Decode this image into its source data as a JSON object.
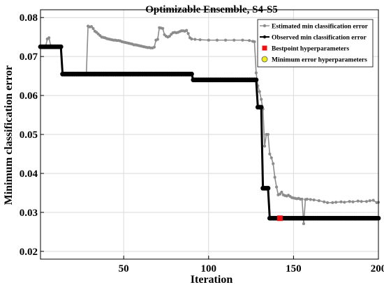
{
  "chart_data": {
    "type": "line",
    "title": "Optimizable Ensemble, S4-S5",
    "xlabel": "Iteration",
    "ylabel": "Minimum classification error",
    "xlim": [
      1,
      200
    ],
    "ylim": [
      0.018,
      0.082
    ],
    "xticks": [
      "50",
      "100",
      "150",
      "200"
    ],
    "yticks": [
      "0.02",
      "0.03",
      "0.04",
      "0.05",
      "0.06",
      "0.07",
      "0.08"
    ],
    "grid": true,
    "legend_position": "top-right",
    "series": [
      {
        "name": "Estimated min classification error",
        "color": "#8c8c8c",
        "marker": "dot",
        "points": [
          [
            1,
            0.0725
          ],
          [
            2,
            0.0725
          ],
          [
            3,
            0.0725
          ],
          [
            4,
            0.0725
          ],
          [
            5,
            0.0745
          ],
          [
            6,
            0.0748
          ],
          [
            7,
            0.0728
          ],
          [
            8,
            0.0725
          ],
          [
            9,
            0.0725
          ],
          [
            10,
            0.0725
          ],
          [
            11,
            0.0725
          ],
          [
            12,
            0.0725
          ],
          [
            13,
            0.0725
          ],
          [
            14,
            0.0655
          ],
          [
            16,
            0.0655
          ],
          [
            18,
            0.0655
          ],
          [
            20,
            0.0655
          ],
          [
            22,
            0.0655
          ],
          [
            24,
            0.0655
          ],
          [
            26,
            0.0655
          ],
          [
            28,
            0.0655
          ],
          [
            29,
            0.0778
          ],
          [
            30,
            0.0776
          ],
          [
            31,
            0.0777
          ],
          [
            32,
            0.0772
          ],
          [
            33,
            0.0765
          ],
          [
            34,
            0.0762
          ],
          [
            35,
            0.0758
          ],
          [
            36,
            0.0754
          ],
          [
            37,
            0.075
          ],
          [
            38,
            0.0749
          ],
          [
            39,
            0.0748
          ],
          [
            40,
            0.0746
          ],
          [
            41,
            0.0745
          ],
          [
            42,
            0.0744
          ],
          [
            43,
            0.0743
          ],
          [
            44,
            0.0742
          ],
          [
            45,
            0.0742
          ],
          [
            46,
            0.0741
          ],
          [
            47,
            0.0741
          ],
          [
            48,
            0.074
          ],
          [
            49,
            0.0738
          ],
          [
            50,
            0.0737
          ],
          [
            51,
            0.0736
          ],
          [
            52,
            0.0735
          ],
          [
            53,
            0.0734
          ],
          [
            54,
            0.0733
          ],
          [
            55,
            0.0732
          ],
          [
            56,
            0.073
          ],
          [
            57,
            0.073
          ],
          [
            58,
            0.0729
          ],
          [
            59,
            0.0728
          ],
          [
            60,
            0.0727
          ],
          [
            61,
            0.0726
          ],
          [
            62,
            0.0725
          ],
          [
            63,
            0.0724
          ],
          [
            64,
            0.0723
          ],
          [
            65,
            0.0723
          ],
          [
            66,
            0.0722
          ],
          [
            67,
            0.0722
          ],
          [
            68,
            0.0724
          ],
          [
            69,
            0.0742
          ],
          [
            70,
            0.0744
          ],
          [
            71,
            0.0774
          ],
          [
            72,
            0.0773
          ],
          [
            73,
            0.0772
          ],
          [
            74,
            0.0756
          ],
          [
            75,
            0.0752
          ],
          [
            76,
            0.075
          ],
          [
            77,
            0.0752
          ],
          [
            78,
            0.0757
          ],
          [
            79,
            0.0761
          ],
          [
            80,
            0.0762
          ],
          [
            81,
            0.0761
          ],
          [
            82,
            0.0762
          ],
          [
            83,
            0.0764
          ],
          [
            84,
            0.0766
          ],
          [
            85,
            0.0766
          ],
          [
            86,
            0.0765
          ],
          [
            87,
            0.0767
          ],
          [
            88,
            0.0759
          ],
          [
            89,
            0.0748
          ],
          [
            90,
            0.0745
          ],
          [
            92,
            0.0744
          ],
          [
            95,
            0.0743
          ],
          [
            100,
            0.0742
          ],
          [
            105,
            0.0742
          ],
          [
            110,
            0.0742
          ],
          [
            115,
            0.0742
          ],
          [
            120,
            0.0742
          ],
          [
            124,
            0.0741
          ],
          [
            126,
            0.0739
          ],
          [
            127,
            0.0738
          ],
          [
            128,
            0.0658
          ],
          [
            129,
            0.0625
          ],
          [
            130,
            0.061
          ],
          [
            131,
            0.059
          ],
          [
            132,
            0.0565
          ],
          [
            133,
            0.047
          ],
          [
            134,
            0.05
          ],
          [
            135,
            0.05
          ],
          [
            136,
            0.045
          ],
          [
            137,
            0.044
          ],
          [
            138,
            0.0425
          ],
          [
            139,
            0.039
          ],
          [
            140,
            0.0365
          ],
          [
            141,
            0.0345
          ],
          [
            142,
            0.0347
          ],
          [
            143,
            0.0352
          ],
          [
            144,
            0.0345
          ],
          [
            145,
            0.0343
          ],
          [
            146,
            0.0342
          ],
          [
            147,
            0.0344
          ],
          [
            148,
            0.0341
          ],
          [
            149,
            0.0338
          ],
          [
            150,
            0.0337
          ],
          [
            151,
            0.0336
          ],
          [
            152,
            0.0335
          ],
          [
            153,
            0.0336
          ],
          [
            154,
            0.0334
          ],
          [
            155,
            0.0334
          ],
          [
            156,
            0.0271
          ],
          [
            157,
            0.0333
          ],
          [
            158,
            0.0334
          ],
          [
            160,
            0.0333
          ],
          [
            162,
            0.0332
          ],
          [
            165,
            0.033
          ],
          [
            168,
            0.0327
          ],
          [
            170,
            0.0325
          ],
          [
            173,
            0.0325
          ],
          [
            175,
            0.0326
          ],
          [
            178,
            0.0327
          ],
          [
            180,
            0.0326
          ],
          [
            183,
            0.0328
          ],
          [
            185,
            0.0327
          ],
          [
            188,
            0.0329
          ],
          [
            190,
            0.0328
          ],
          [
            193,
            0.0328
          ],
          [
            195,
            0.033
          ],
          [
            197,
            0.0331
          ],
          [
            199,
            0.0325
          ],
          [
            200,
            0.0326
          ]
        ]
      },
      {
        "name": "Observed min classification error",
        "color": "#000000",
        "marker": "dot",
        "points": [
          [
            1,
            0.0725
          ],
          [
            13,
            0.0725
          ],
          [
            14,
            0.0655
          ],
          [
            90,
            0.0655
          ],
          [
            91,
            0.064
          ],
          [
            128,
            0.064
          ],
          [
            129,
            0.057
          ],
          [
            131,
            0.057
          ],
          [
            132,
            0.0362
          ],
          [
            135,
            0.0362
          ],
          [
            136,
            0.0285
          ],
          [
            200,
            0.0285
          ]
        ]
      },
      {
        "name": "Bestpoint hyperparameters",
        "color": "#ee1111",
        "marker": "square",
        "points": [
          [
            142,
            0.0285
          ]
        ]
      },
      {
        "name": "Minimum error hyperparameters",
        "color": "#eeee22",
        "marker": "circle",
        "points": []
      }
    ]
  }
}
